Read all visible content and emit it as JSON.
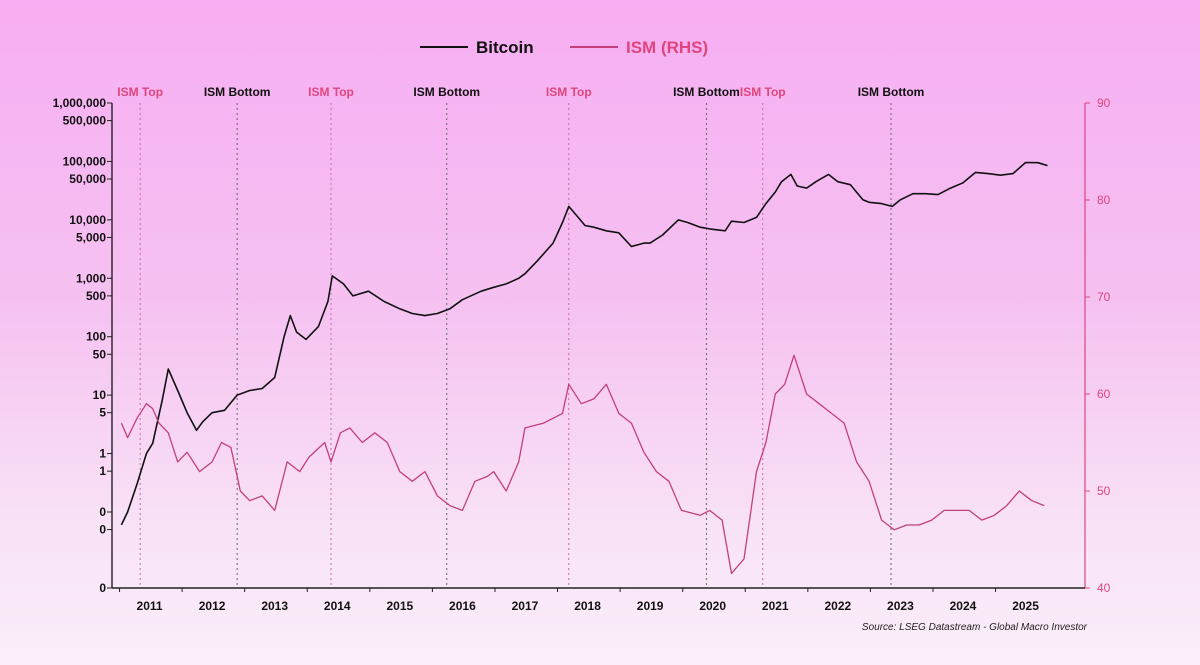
{
  "colors": {
    "bitcoin": "#111111",
    "ism": "#c2407a",
    "ism_axis": "#e0457e",
    "top_label": "#e0457e",
    "bottom_label": "#111111",
    "event_line_top": "#c76aa7",
    "event_line_bottom": "#666666",
    "axis": "#222222"
  },
  "chart_data": {
    "type": "line",
    "legend": {
      "placement": "top-center"
    },
    "series": [
      {
        "name": "Bitcoin",
        "axis": "left",
        "x": [
          2010.55,
          2010.65,
          2010.8,
          2010.95,
          2011.05,
          2011.2,
          2011.3,
          2011.45,
          2011.6,
          2011.75,
          2011.85,
          2012.0,
          2012.2,
          2012.4,
          2012.6,
          2012.8,
          2013.0,
          2013.15,
          2013.25,
          2013.35,
          2013.5,
          2013.7,
          2013.85,
          2013.92,
          2014.1,
          2014.25,
          2014.5,
          2014.75,
          2015.0,
          2015.2,
          2015.4,
          2015.6,
          2015.8,
          2016.0,
          2016.3,
          2016.5,
          2016.7,
          2016.9,
          2017.0,
          2017.2,
          2017.45,
          2017.6,
          2017.7,
          2017.85,
          2017.96,
          2018.1,
          2018.3,
          2018.5,
          2018.7,
          2018.9,
          2019.0,
          2019.2,
          2019.45,
          2019.6,
          2019.8,
          2019.95,
          2020.2,
          2020.3,
          2020.5,
          2020.7,
          2020.85,
          2021.0,
          2021.1,
          2021.25,
          2021.35,
          2021.5,
          2021.65,
          2021.85,
          2022.0,
          2022.2,
          2022.4,
          2022.5,
          2022.7,
          2022.87,
          2023.0,
          2023.2,
          2023.4,
          2023.6,
          2023.8,
          2024.0,
          2024.2,
          2024.4,
          2024.6,
          2024.8,
          2025.0,
          2025.2,
          2025.35
        ],
        "values": [
          0.06,
          0.1,
          0.3,
          1.0,
          1.5,
          8,
          28,
          12,
          5,
          2.5,
          3.5,
          5,
          5.5,
          10,
          12,
          13,
          20,
          100,
          230,
          120,
          90,
          150,
          400,
          1100,
          800,
          500,
          600,
          400,
          300,
          250,
          230,
          250,
          300,
          430,
          600,
          700,
          800,
          1000,
          1200,
          2000,
          4000,
          9000,
          17000,
          11000,
          8000,
          7500,
          6500,
          6000,
          3500,
          4000,
          4000,
          5500,
          10000,
          9000,
          7500,
          7000,
          6500,
          9500,
          9000,
          11000,
          19000,
          30000,
          45000,
          60000,
          38000,
          35000,
          45000,
          60000,
          45000,
          40000,
          22000,
          20000,
          19000,
          17000,
          22000,
          28000,
          28000,
          27000,
          35000,
          43000,
          65000,
          62000,
          58000,
          62000,
          96000,
          95000,
          85000
        ],
        "color": "#111111"
      },
      {
        "name": "ISM (RHS)",
        "axis": "right",
        "x": [
          2010.55,
          2010.65,
          2010.8,
          2010.95,
          2011.05,
          2011.15,
          2011.3,
          2011.45,
          2011.6,
          2011.8,
          2012.0,
          2012.15,
          2012.3,
          2012.45,
          2012.6,
          2012.8,
          2013.0,
          2013.2,
          2013.4,
          2013.55,
          2013.8,
          2013.9,
          2014.05,
          2014.2,
          2014.4,
          2014.6,
          2014.8,
          2015.0,
          2015.2,
          2015.4,
          2015.6,
          2015.8,
          2016.0,
          2016.2,
          2016.4,
          2016.5,
          2016.7,
          2016.9,
          2017.0,
          2017.3,
          2017.6,
          2017.7,
          2017.9,
          2018.1,
          2018.3,
          2018.5,
          2018.7,
          2018.9,
          2019.1,
          2019.3,
          2019.5,
          2019.8,
          2019.95,
          2020.15,
          2020.3,
          2020.5,
          2020.7,
          2020.85,
          2021.0,
          2021.15,
          2021.3,
          2021.5,
          2021.7,
          2021.9,
          2022.1,
          2022.3,
          2022.5,
          2022.7,
          2022.9,
          2023.1,
          2023.3,
          2023.5,
          2023.7,
          2023.9,
          2024.1,
          2024.3,
          2024.5,
          2024.7,
          2024.9,
          2025.1,
          2025.3
        ],
        "values": [
          57,
          55.5,
          57.5,
          59,
          58.5,
          57,
          56,
          53,
          54,
          52,
          53,
          55,
          54.5,
          50,
          49,
          49.5,
          48,
          53,
          52,
          53.5,
          55,
          53,
          56,
          56.5,
          55,
          56,
          55,
          52,
          51,
          52,
          49.5,
          48.5,
          48,
          51,
          51.5,
          52,
          50,
          53,
          56.5,
          57,
          58,
          61,
          59,
          59.5,
          61,
          58,
          57,
          54,
          52,
          51,
          48,
          47.5,
          48,
          47,
          41.5,
          43,
          52,
          55,
          60,
          61,
          64,
          60,
          59,
          58,
          57,
          53,
          51,
          47,
          46,
          46.5,
          46.5,
          47,
          48,
          48,
          48,
          47,
          47.5,
          48.5,
          50,
          49,
          48.5
        ],
        "color": "#c2407a"
      }
    ],
    "left_axis": {
      "scale": "log",
      "ylim": [
        0.005,
        1000000
      ],
      "ticks": [
        {
          "value": 1000000,
          "label": "1,000,000"
        },
        {
          "value": 500000,
          "label": "500,000"
        },
        {
          "value": 100000,
          "label": "100,000"
        },
        {
          "value": 50000,
          "label": "50,000"
        },
        {
          "value": 10000,
          "label": "10,000"
        },
        {
          "value": 5000,
          "label": "5,000"
        },
        {
          "value": 1000,
          "label": "1,000"
        },
        {
          "value": 500,
          "label": "500"
        },
        {
          "value": 100,
          "label": "100"
        },
        {
          "value": 50,
          "label": "50"
        },
        {
          "value": 10,
          "label": "10"
        },
        {
          "value": 5,
          "label": "5"
        },
        {
          "value": 1,
          "label": "1"
        },
        {
          "value": 0.5,
          "label": "1"
        },
        {
          "value": 0.1,
          "label": "0"
        },
        {
          "value": 0.05,
          "label": "0"
        },
        {
          "value": 0.005,
          "label": "0"
        }
      ]
    },
    "right_axis": {
      "scale": "linear",
      "ylim": [
        40,
        90
      ],
      "ticks": [
        {
          "value": 90,
          "label": "90"
        },
        {
          "value": 80,
          "label": "80"
        },
        {
          "value": 70,
          "label": "70"
        },
        {
          "value": 60,
          "label": "60"
        },
        {
          "value": 50,
          "label": "50"
        },
        {
          "value": 40,
          "label": "40"
        }
      ]
    },
    "x_axis": {
      "xlim": [
        2010.4,
        2025.95
      ],
      "ticks": [
        {
          "value": 2011.0,
          "label": "2011"
        },
        {
          "value": 2012.0,
          "label": "2012"
        },
        {
          "value": 2013.0,
          "label": "2013"
        },
        {
          "value": 2014.0,
          "label": "2014"
        },
        {
          "value": 2015.0,
          "label": "2015"
        },
        {
          "value": 2016.0,
          "label": "2016"
        },
        {
          "value": 2017.0,
          "label": "2017"
        },
        {
          "value": 2018.0,
          "label": "2018"
        },
        {
          "value": 2019.0,
          "label": "2019"
        },
        {
          "value": 2020.0,
          "label": "2020"
        },
        {
          "value": 2021.0,
          "label": "2021"
        },
        {
          "value": 2022.0,
          "label": "2022"
        },
        {
          "value": 2023.0,
          "label": "2023"
        },
        {
          "value": 2024.0,
          "label": "2024"
        },
        {
          "value": 2025.0,
          "label": "2025"
        }
      ]
    },
    "events": [
      {
        "x": 2010.85,
        "label": "ISM Top",
        "kind": "top"
      },
      {
        "x": 2012.4,
        "label": "ISM Bottom",
        "kind": "bottom"
      },
      {
        "x": 2013.9,
        "label": "ISM Top",
        "kind": "top"
      },
      {
        "x": 2015.75,
        "label": "ISM Bottom",
        "kind": "bottom"
      },
      {
        "x": 2017.7,
        "label": "ISM Top",
        "kind": "top"
      },
      {
        "x": 2019.9,
        "label": "ISM Bottom",
        "kind": "bottom"
      },
      {
        "x": 2020.8,
        "label": "ISM Top",
        "kind": "top"
      },
      {
        "x": 2022.85,
        "label": "ISM Bottom",
        "kind": "bottom"
      }
    ],
    "grid": false,
    "source": "Source: LSEG Datastream - Global Macro Investor"
  }
}
